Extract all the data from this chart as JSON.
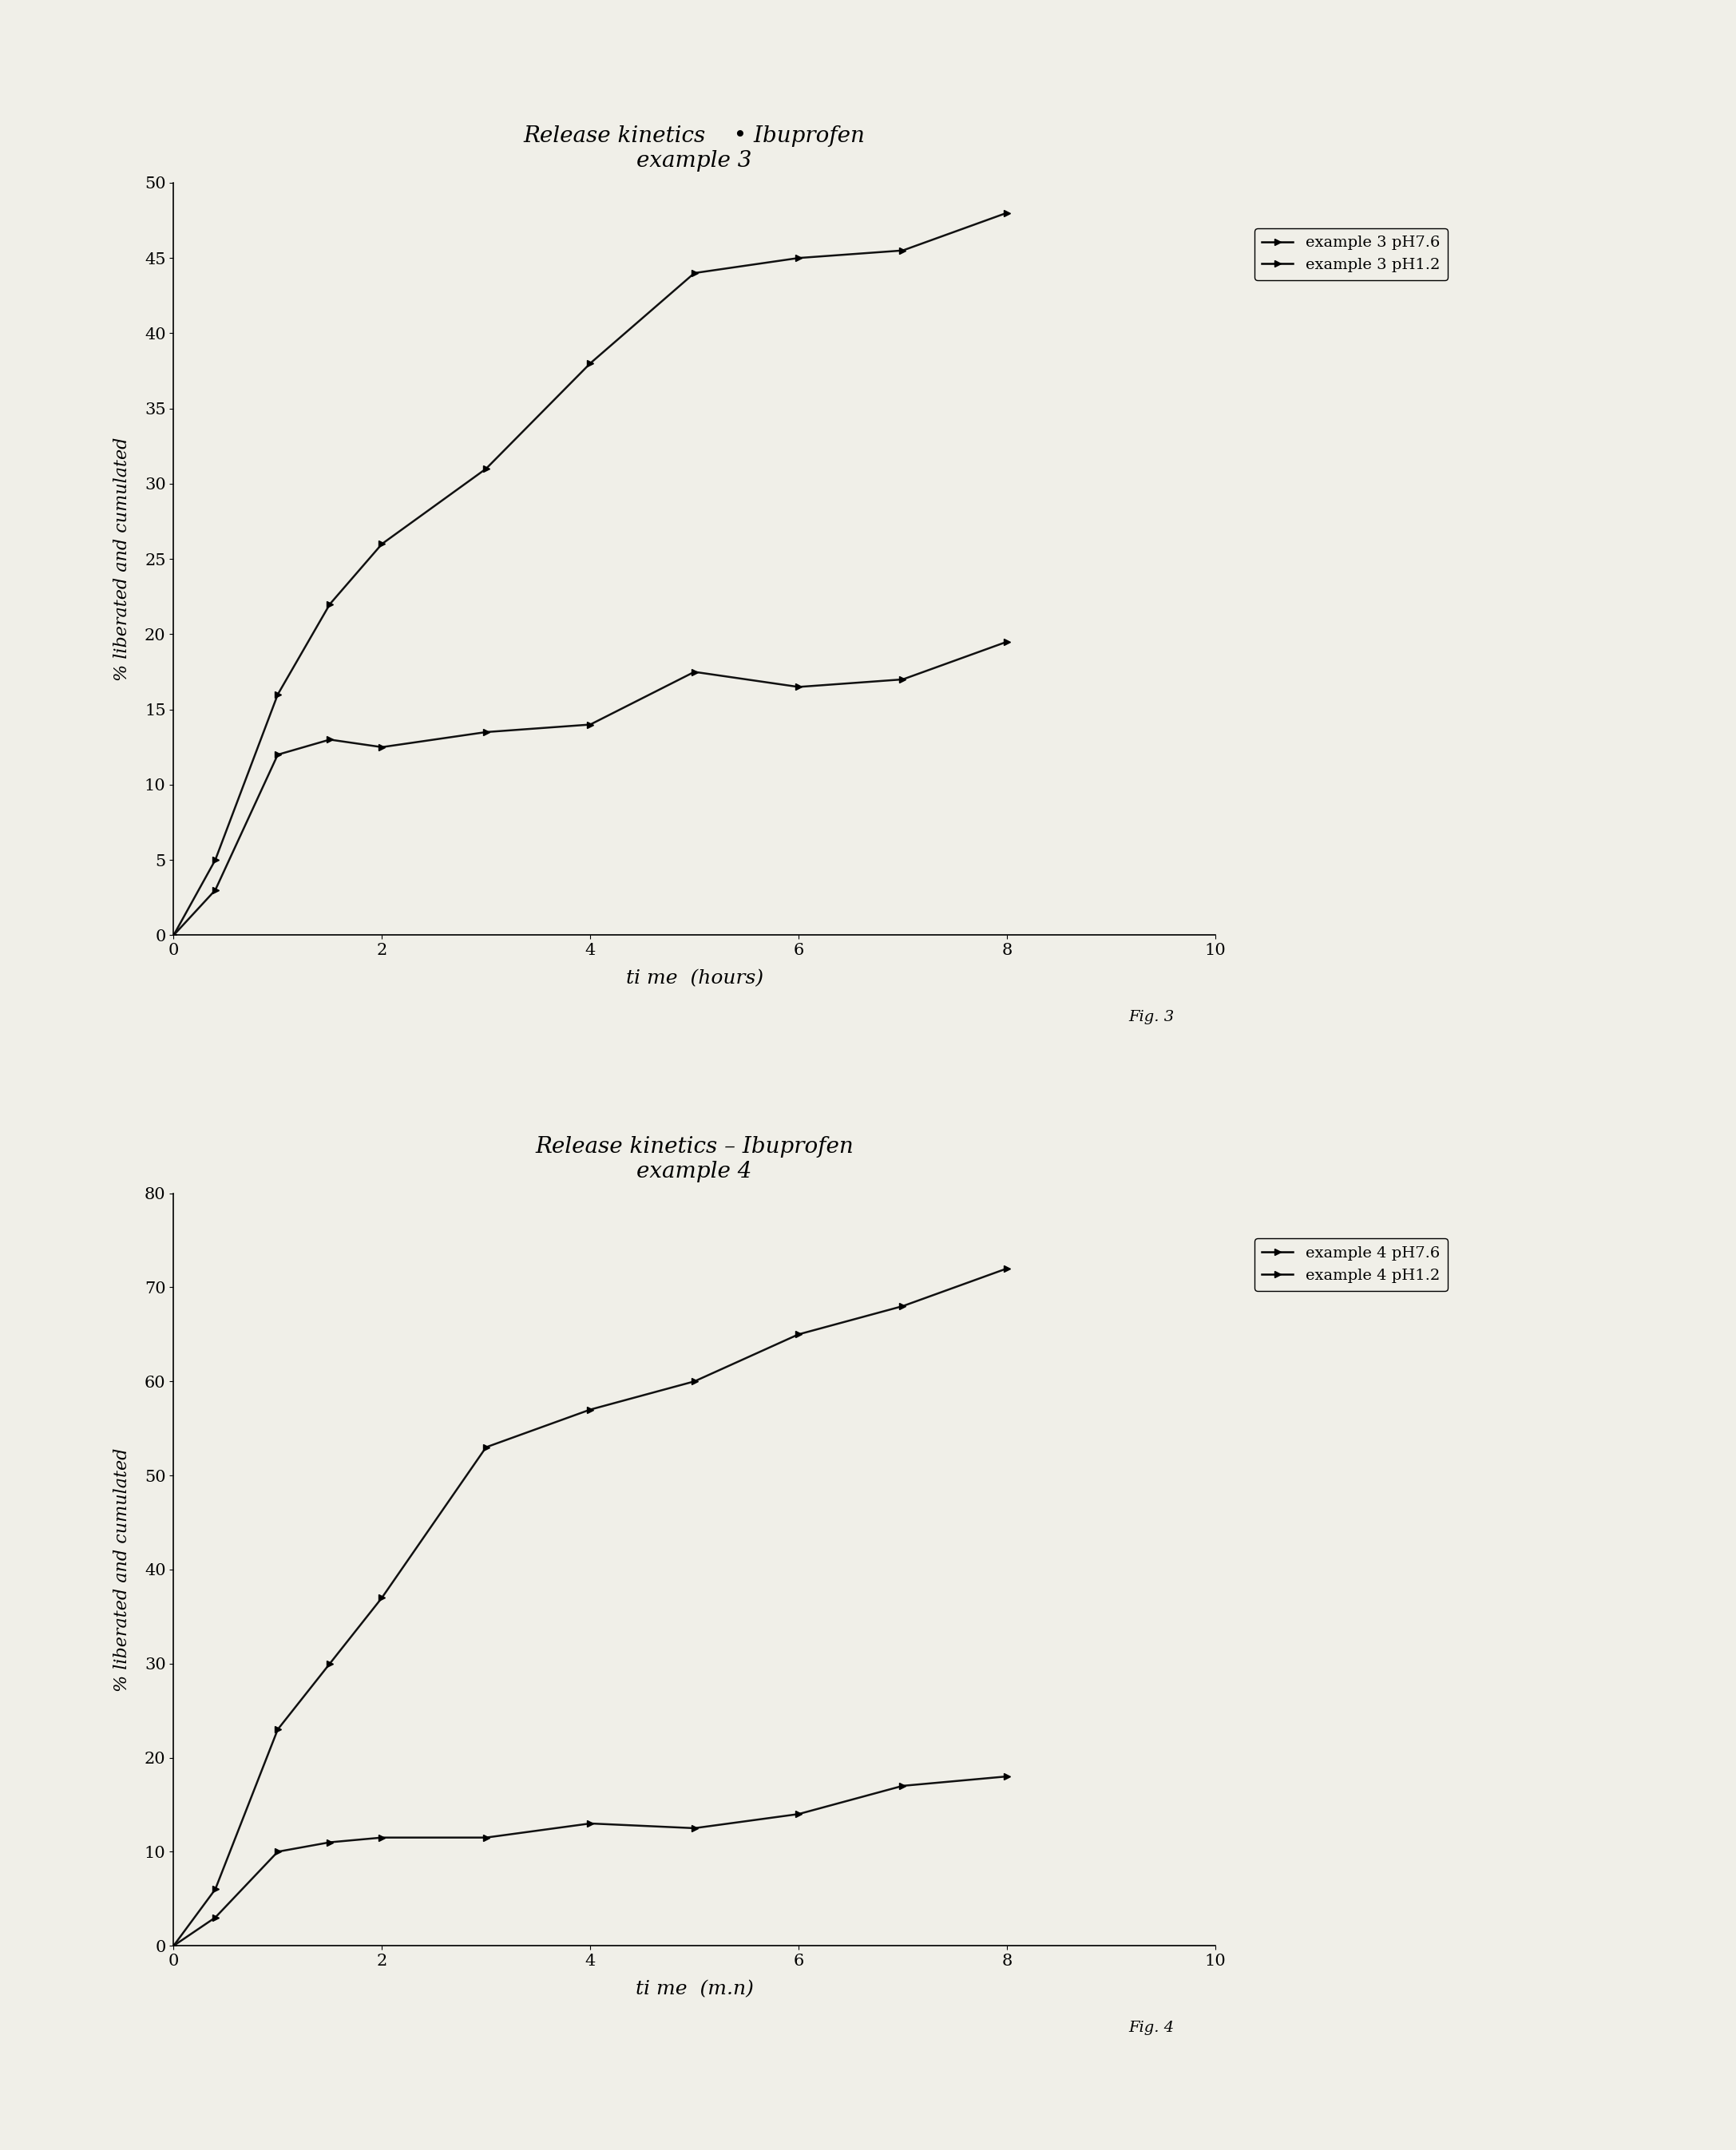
{
  "fig3": {
    "title_line1": "Release kinetics    • Ibuprofen",
    "title_line2": "example 3",
    "xlabel": "ti me  (hours)",
    "ylabel": "% liberated and cumulated",
    "xlim": [
      0,
      10
    ],
    "ylim": [
      0,
      50
    ],
    "yticks": [
      0,
      5,
      10,
      15,
      20,
      25,
      30,
      35,
      40,
      45,
      50
    ],
    "xticks": [
      0,
      2,
      4,
      6,
      8,
      10
    ],
    "caption": "Fig. 3",
    "legend_labels": [
      "example 3 pH7.6",
      "example 3 pH1.2"
    ],
    "series": [
      {
        "label": "example 3 pH7.6",
        "x": [
          0,
          0.4,
          1.0,
          1.5,
          2.0,
          3.0,
          4.0,
          5.0,
          6.0,
          7.0,
          8.0
        ],
        "y": [
          0,
          5,
          16,
          22,
          26,
          31,
          38,
          44,
          45,
          45.5,
          48
        ],
        "color": "#111111",
        "marker": ">"
      },
      {
        "label": "example 3 pH1.2",
        "x": [
          0,
          0.4,
          1.0,
          1.5,
          2.0,
          3.0,
          4.0,
          5.0,
          6.0,
          7.0,
          8.0
        ],
        "y": [
          0,
          3,
          12,
          13,
          12.5,
          13.5,
          14,
          17.5,
          16.5,
          17,
          19.5
        ],
        "color": "#111111",
        "marker": ">"
      },
      {
        "label": null,
        "x": [
          0,
          10
        ],
        "y": [
          0,
          0
        ],
        "color": "#111111",
        "marker": null
      }
    ]
  },
  "fig4": {
    "title_line1": "Release kinetics – Ibuprofen",
    "title_line2": "example 4",
    "xlabel": "ti me  (m.n)",
    "ylabel": "% liberated and cumulated",
    "xlim": [
      0,
      10
    ],
    "ylim": [
      0,
      80
    ],
    "yticks": [
      0,
      10,
      20,
      30,
      40,
      50,
      60,
      70,
      80
    ],
    "xticks": [
      0,
      2,
      4,
      6,
      8,
      10
    ],
    "caption": "Fig. 4",
    "legend_labels": [
      "example 4 pH7.6",
      "example 4 pH1.2"
    ],
    "series": [
      {
        "label": "example 4 pH7.6",
        "x": [
          0,
          0.4,
          1.0,
          1.5,
          2.0,
          3.0,
          4.0,
          5.0,
          6.0,
          7.0,
          8.0
        ],
        "y": [
          0,
          6,
          23,
          30,
          37,
          53,
          57,
          60,
          65,
          68,
          72
        ],
        "color": "#111111",
        "marker": ">"
      },
      {
        "label": "example 4 pH1.2",
        "x": [
          0,
          0.4,
          1.0,
          1.5,
          2.0,
          3.0,
          4.0,
          5.0,
          6.0,
          7.0,
          8.0
        ],
        "y": [
          0,
          3,
          10,
          11,
          11.5,
          11.5,
          13,
          12.5,
          14,
          17,
          18
        ],
        "color": "#111111",
        "marker": ">"
      },
      {
        "label": null,
        "x": [
          0,
          10
        ],
        "y": [
          0,
          0
        ],
        "color": "#111111",
        "marker": null
      }
    ]
  },
  "background_color": "#f0efe8",
  "font_family": "DejaVu Serif"
}
